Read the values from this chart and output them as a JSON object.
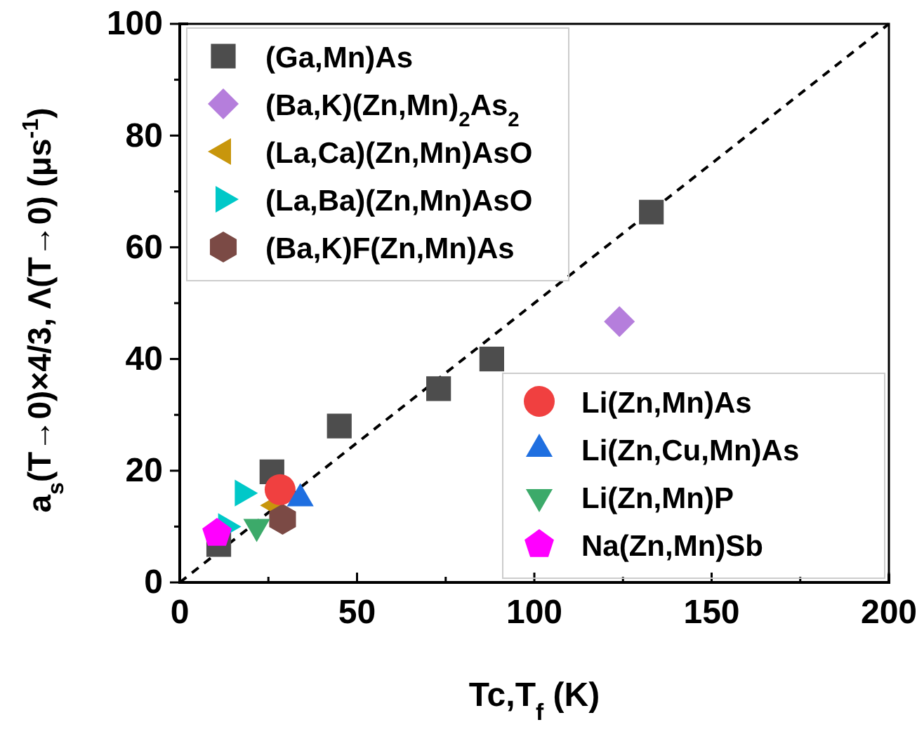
{
  "chart_data": {
    "type": "scatter",
    "xlabel": "Tc,T$_{f}$ (K)",
    "ylabel": "a$_{s}$(T→0)×4/3, Λ(T→0) (μs$^{-1}$)",
    "xlim": [
      0,
      200
    ],
    "ylim": [
      0,
      100
    ],
    "xticks": [
      0,
      {
        "value": 25,
        "label": null
      },
      50,
      {
        "value": 75,
        "label": null
      },
      100,
      {
        "value": 125,
        "label": null
      },
      150,
      {
        "value": 175,
        "label": null
      },
      200
    ],
    "yticks": [
      0,
      {
        "value": 10,
        "label": null
      },
      20,
      {
        "value": 30,
        "label": null
      },
      40,
      {
        "value": 50,
        "label": null
      },
      60,
      {
        "value": 70,
        "label": null
      },
      80,
      {
        "value": 90,
        "label": null
      },
      100
    ],
    "grid": false,
    "legend": [
      "top left",
      "bottom right"
    ],
    "series": [
      {
        "type": "line",
        "color": "#000000",
        "line_style": "dashed",
        "marker": "none",
        "x": [
          0,
          200
        ],
        "values": [
          0,
          100
        ]
      },
      {
        "name": "(Ga,Mn)As",
        "color": "#4d4d4d",
        "marker": "square",
        "x": [
          11,
          26,
          45,
          73,
          88,
          133
        ],
        "values": [
          6.8,
          19.8,
          28,
          34.7,
          40,
          66.3
        ]
      },
      {
        "name": "(Ba,K)(Zn,Mn)$_{2}$As$_{2}$",
        "color": "#b57edc",
        "marker": "diamond",
        "x": [
          124
        ],
        "values": [
          46.7
        ]
      },
      {
        "name": "(La,Ca)(Zn,Mn)AsO",
        "color": "#c8960c",
        "marker": "triangle-left",
        "x": [
          27
        ],
        "values": [
          13.8
        ]
      },
      {
        "name": "(La,Ba)(Zn,Mn)AsO",
        "color": "#00c8c8",
        "marker": "triangle-right",
        "x": [
          17.7,
          13
        ],
        "values": [
          16,
          10
        ]
      },
      {
        "name": "(Ba,K)F(Zn,Mn)As",
        "color": "#7b4a45",
        "x": [
          29
        ],
        "values": [
          11.3
        ]
      },
      {
        "name": "Li(Zn,Mn)As",
        "color": "#f04040",
        "marker": "circle",
        "x": [
          28.3
        ],
        "values": [
          16.6
        ]
      },
      {
        "name": "Li(Zn,Cu,Mn)As",
        "color": "#1f6fe0",
        "marker": "triangle",
        "x": [
          34
        ],
        "values": [
          15
        ]
      },
      {
        "name": "Li(Zn,Mn)P",
        "color": "#3caa6a",
        "marker": "triangle-down",
        "x": [
          21.7
        ],
        "values": [
          10
        ]
      },
      {
        "name": "Na(Zn,Mn)Sb",
        "color": "#ff00ff",
        "x": [
          10.5
        ],
        "values": [
          8.8
        ]
      }
    ]
  }
}
